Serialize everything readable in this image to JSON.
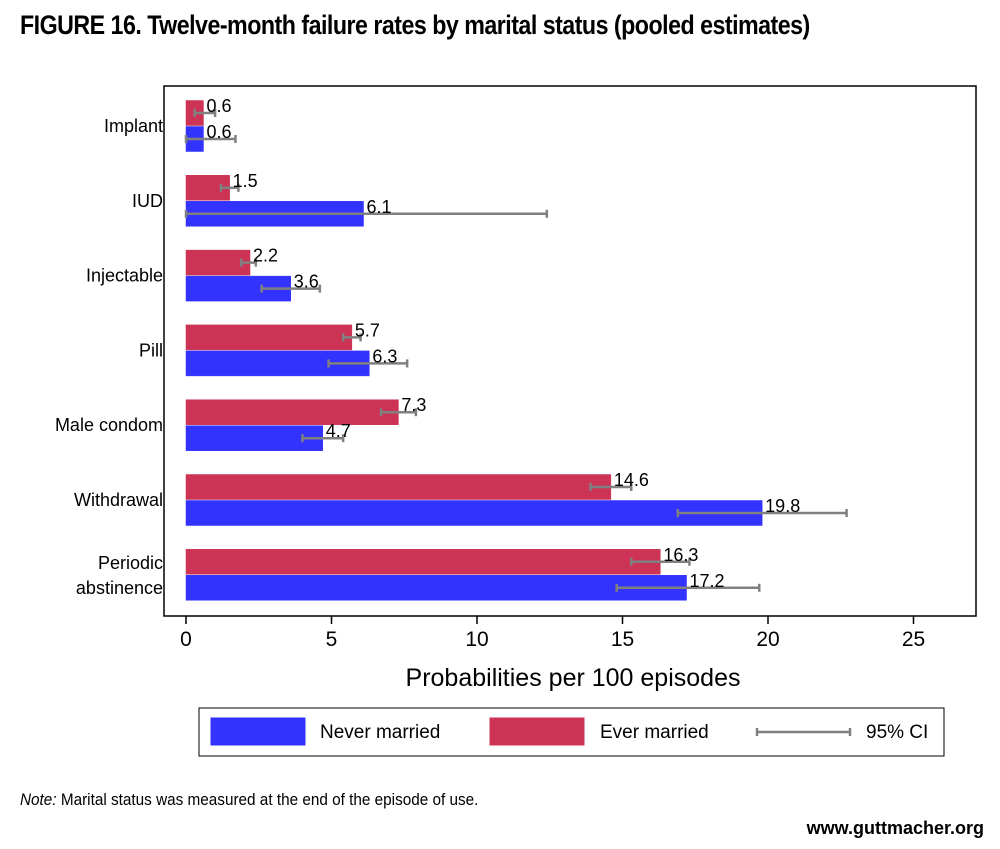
{
  "title": "FIGURE 16. Twelve-month failure rates by marital status (pooled estimates)",
  "note_label": "Note:",
  "note_text": "Marital status was measured at the end of the episode of use.",
  "source": "www.guttmacher.org",
  "chart_data": {
    "type": "bar",
    "orientation": "horizontal",
    "categories": [
      [
        "Implant"
      ],
      [
        "IUD"
      ],
      [
        "Injectable"
      ],
      [
        "Pill"
      ],
      [
        "Male condom"
      ],
      [
        "Withdrawal"
      ],
      [
        "Periodic",
        "abstinence"
      ]
    ],
    "series": [
      {
        "name": "Ever married",
        "color": "#cc3355",
        "values": [
          0.6,
          1.5,
          2.2,
          5.7,
          7.3,
          14.6,
          16.3
        ],
        "ci": [
          [
            0.3,
            1.0
          ],
          [
            1.2,
            1.8
          ],
          [
            1.9,
            2.4
          ],
          [
            5.4,
            6.0
          ],
          [
            6.7,
            7.9
          ],
          [
            13.9,
            15.3
          ],
          [
            15.3,
            17.3
          ]
        ]
      },
      {
        "name": "Never married",
        "color": "#3333ff",
        "values": [
          0.6,
          6.1,
          3.6,
          6.3,
          4.7,
          19.8,
          17.2
        ],
        "ci": [
          [
            0.0,
            1.7
          ],
          [
            0.0,
            12.4
          ],
          [
            2.6,
            4.6
          ],
          [
            4.9,
            7.6
          ],
          [
            4.0,
            5.4
          ],
          [
            16.9,
            22.7
          ],
          [
            14.8,
            19.7
          ]
        ]
      }
    ],
    "ci_label": "95% CI",
    "xlabel": "Probabilities per 100 episodes",
    "xlim": [
      0,
      27.5
    ],
    "xticks": [
      0,
      5,
      10,
      15,
      20,
      25
    ],
    "legend_order": [
      "Never married",
      "Ever married",
      "95% CI"
    ],
    "legend_position": "bottom",
    "grid": false
  }
}
